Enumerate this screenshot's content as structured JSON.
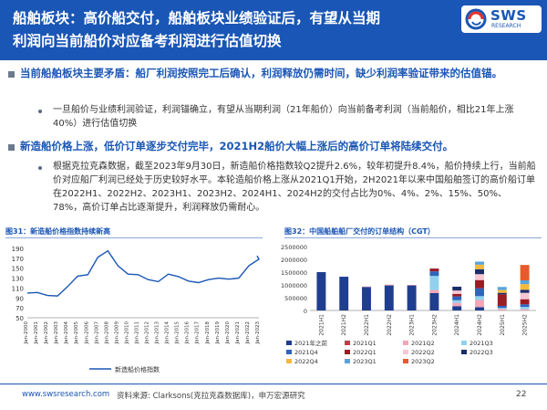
{
  "slide": {
    "title": "船舶板块：高价船交付，船舶板块业绩验证后，有望从当期\n利润向当前船价对应备考利润进行估值切换",
    "logo": {
      "name": "SWS",
      "subtitle": "RESEARCH"
    }
  },
  "bullets": [
    {
      "text": "当前船舶板块主要矛盾：船厂利润按照完工后确认，利润释放仍需时间，缺少利润率验证带来的估值锚。",
      "sub": [
        "一旦船价与业绩利润验证，利润锚确立，有望从当期利润（21年船价）向当前备考利润（当前船价，相比21年上涨40%）进行估值切换"
      ]
    },
    {
      "text": "新造船价格上涨，低价订单逐步交付完毕，2021H2船价大幅上涨后的高价订单将陆续交付。",
      "sub": [
        "根据克拉克森数据，截至2023年9月30日，新造船价格指数较Q2提升2.6%，较年初提升8.4%，船价持续上行，当前船价对应船厂利润已经处于历史较好水平。本轮造船价格上涨从2021Q1开始，2H2021年以来中国船舶签订的高价船订单在2022H1、2022H2、2023H1、2023H2、2024H1、2024H2的交付占比为0%、4%、2%、15%、50%、78%，高价订单占比逐渐提升，利润释放仍需耐心。"
      ]
    }
  ],
  "footer": {
    "url": "www.swsresearch.com",
    "source": "资料来源: Clarksons(克拉克森数据库)，申万宏源研究",
    "page": "22"
  },
  "colors": {
    "primary": "#1a56b5",
    "bullet_text": "#1a56b5",
    "line": "#1a56b5"
  },
  "chart_data": [
    {
      "type": "line",
      "title": "图31：新造船价格指数持续新高",
      "x": [
        "Jan-2000",
        "Jan-2001",
        "Jan-2002",
        "Jan-2003",
        "Jan-2004",
        "Jan-2005",
        "Jan-2006",
        "Jan-2007",
        "Jan-2008",
        "Jan-2009",
        "Jan-2010",
        "Jan-2011",
        "Jan-2012",
        "Jan-2013",
        "Jan-2014",
        "Jan-2015",
        "Jan-2016",
        "Jan-2017",
        "Jan-2018",
        "Jan-2019",
        "Jan-2020",
        "Jan-2021",
        "Jan-2022",
        "Jan-2023"
      ],
      "series": [
        {
          "name": "新造船价格指数",
          "values": [
            100,
            101,
            95,
            94,
            113,
            134,
            137,
            172,
            185,
            155,
            138,
            137,
            127,
            123,
            138,
            133,
            124,
            121,
            127,
            130,
            128,
            130,
            155,
            168
          ]
        }
      ],
      "end_value": 175,
      "ylim": [
        50,
        190
      ],
      "yticks": [
        50,
        70,
        90,
        110,
        130,
        150,
        170,
        190
      ],
      "legend": "bottom"
    },
    {
      "type": "bar",
      "stacked": true,
      "title": "图32：中国船舶船厂交付的订单结构（CGT）",
      "categories": [
        "2021H1",
        "2021H2",
        "2022H1",
        "2022H2",
        "2023H1",
        "2023H2",
        "2024H1",
        "2024H2",
        "2025H1",
        "2025H2"
      ],
      "ylim": [
        0,
        2500000
      ],
      "yticks": [
        0,
        500000,
        1000000,
        1500000,
        2000000,
        2500000
      ],
      "series": [
        {
          "name": "2021年之前",
          "color": "#1f3e8f",
          "values": [
            1500000,
            1320000,
            920000,
            980000,
            980000,
            680000,
            170000,
            130000,
            0,
            0
          ]
        },
        {
          "name": "2021Q1",
          "color": "#c8384a",
          "values": [
            0,
            0,
            0,
            0,
            0,
            0,
            0,
            0,
            0,
            0
          ]
        },
        {
          "name": "2021Q2",
          "color": "#f4a6b6",
          "values": [
            0,
            0,
            20000,
            30000,
            20000,
            120000,
            130000,
            280000,
            60000,
            50000
          ]
        },
        {
          "name": "2021Q3",
          "color": "#90d2ee",
          "values": [
            0,
            0,
            0,
            0,
            0,
            550000,
            100000,
            150000,
            40000,
            90000
          ]
        },
        {
          "name": "2021Q4",
          "color": "#2e64be",
          "values": [
            0,
            0,
            0,
            0,
            0,
            180000,
            150000,
            310000,
            80000,
            100000
          ]
        },
        {
          "name": "2022Q1",
          "color": "#9c1c24",
          "values": [
            0,
            0,
            0,
            0,
            0,
            110000,
            100000,
            320000,
            450000,
            200000
          ]
        },
        {
          "name": "2022Q2",
          "color": "#f7c7d3",
          "values": [
            0,
            0,
            0,
            0,
            0,
            0,
            130000,
            230000,
            0,
            250000
          ]
        },
        {
          "name": "2022Q3",
          "color": "#1b2d6b",
          "values": [
            0,
            0,
            0,
            0,
            0,
            0,
            150000,
            190000,
            60000,
            120000
          ]
        },
        {
          "name": "2022Q4",
          "color": "#f6b93b",
          "values": [
            0,
            0,
            0,
            0,
            0,
            0,
            0,
            180000,
            110000,
            220000
          ]
        },
        {
          "name": "2023Q1",
          "color": "#5aa3dd",
          "values": [
            0,
            0,
            0,
            0,
            0,
            0,
            0,
            120000,
            120000,
            150000
          ]
        },
        {
          "name": "2023Q2",
          "color": "#e65a2b",
          "values": [
            0,
            0,
            0,
            0,
            0,
            0,
            0,
            0,
            0,
            600000
          ]
        }
      ],
      "legend": "bottom"
    }
  ]
}
